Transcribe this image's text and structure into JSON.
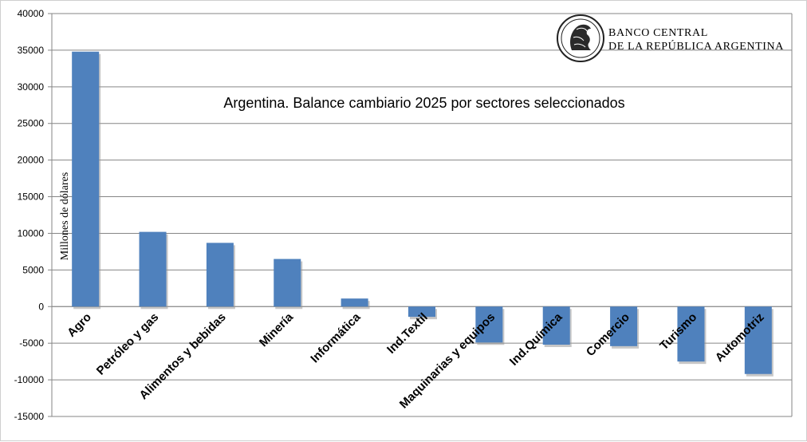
{
  "chart_data": {
    "type": "bar",
    "title": "Argentina. Balance cambiario 2025 por sectores seleccionados",
    "ylabel": "Millones de dólares",
    "xlabel": "",
    "categories": [
      "Agro",
      "Petróleo y gas",
      "Alimentos y bebidas",
      "Minería",
      "Informática",
      "Ind.Textil",
      "Maquinarias y equipos",
      "Ind.Química",
      "Comercio",
      "Turismo",
      "Automotriz"
    ],
    "values": [
      34800,
      10200,
      8700,
      6500,
      1100,
      -1400,
      -4900,
      -5200,
      -5400,
      -7500,
      -9200
    ],
    "ylim": [
      -15000,
      40000
    ],
    "yticks": [
      40000,
      35000,
      30000,
      25000,
      20000,
      15000,
      10000,
      5000,
      0,
      -5000,
      -10000,
      -15000
    ],
    "grid": true,
    "bar_color": "#4f81bd"
  },
  "logo": {
    "line1": "BANCO CENTRAL",
    "line2": "DE LA REPÚBLICA ARGENTINA"
  }
}
